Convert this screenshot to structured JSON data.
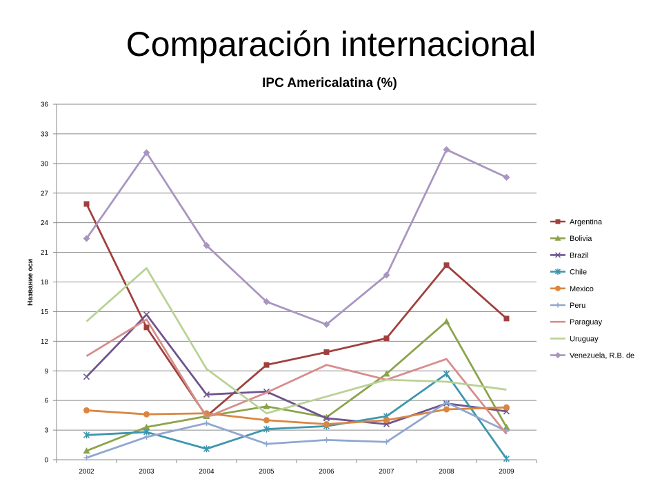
{
  "slide": {
    "title": "Comparación internacional"
  },
  "chart_data": {
    "type": "line",
    "title": "IPC Americalatina (%)",
    "xlabel": "",
    "ylabel": "Название оси",
    "ylim": [
      0,
      36
    ],
    "yticks": [
      0,
      3,
      6,
      9,
      12,
      15,
      18,
      21,
      24,
      27,
      30,
      33,
      36
    ],
    "grid": true,
    "legend_position": "right",
    "categories": [
      "2002",
      "2003",
      "2004",
      "2005",
      "2006",
      "2007",
      "2008",
      "2009"
    ],
    "series": [
      {
        "name": "Argentina",
        "color": "#A0403D",
        "marker": "square",
        "values": [
          25.9,
          13.4,
          4.4,
          9.6,
          10.9,
          12.3,
          19.7,
          14.3
        ]
      },
      {
        "name": "Bolivia",
        "color": "#8BA44B",
        "marker": "triangle",
        "values": [
          0.9,
          3.3,
          4.4,
          5.4,
          4.3,
          8.7,
          14.0,
          3.3
        ]
      },
      {
        "name": "Brazil",
        "color": "#6E548F",
        "marker": "x",
        "values": [
          8.4,
          14.7,
          6.6,
          6.9,
          4.2,
          3.6,
          5.7,
          4.9
        ]
      },
      {
        "name": "Chile",
        "color": "#3E96AE",
        "marker": "star",
        "values": [
          2.5,
          2.8,
          1.1,
          3.1,
          3.4,
          4.4,
          8.7,
          0.1
        ]
      },
      {
        "name": "Mexico",
        "color": "#DA8640",
        "marker": "circle",
        "values": [
          5.0,
          4.6,
          4.7,
          4.0,
          3.6,
          4.0,
          5.1,
          5.3
        ]
      },
      {
        "name": "Peru",
        "color": "#8FA7D0",
        "marker": "plus",
        "values": [
          0.2,
          2.3,
          3.7,
          1.6,
          2.0,
          1.8,
          5.8,
          2.9
        ]
      },
      {
        "name": "Paraguay",
        "color": "#D68E8B",
        "marker": "none",
        "values": [
          10.5,
          14.2,
          4.3,
          6.8,
          9.6,
          8.1,
          10.2,
          2.6
        ]
      },
      {
        "name": "Uruguay",
        "color": "#B9D295",
        "marker": "none",
        "values": [
          14.0,
          19.4,
          9.2,
          4.7,
          6.4,
          8.1,
          7.9,
          7.1
        ]
      },
      {
        "name": "Venezuela, R.B. de",
        "color": "#A995C1",
        "marker": "diamond",
        "values": [
          22.4,
          31.1,
          21.7,
          16.0,
          13.7,
          18.7,
          31.4,
          28.6
        ]
      }
    ]
  }
}
